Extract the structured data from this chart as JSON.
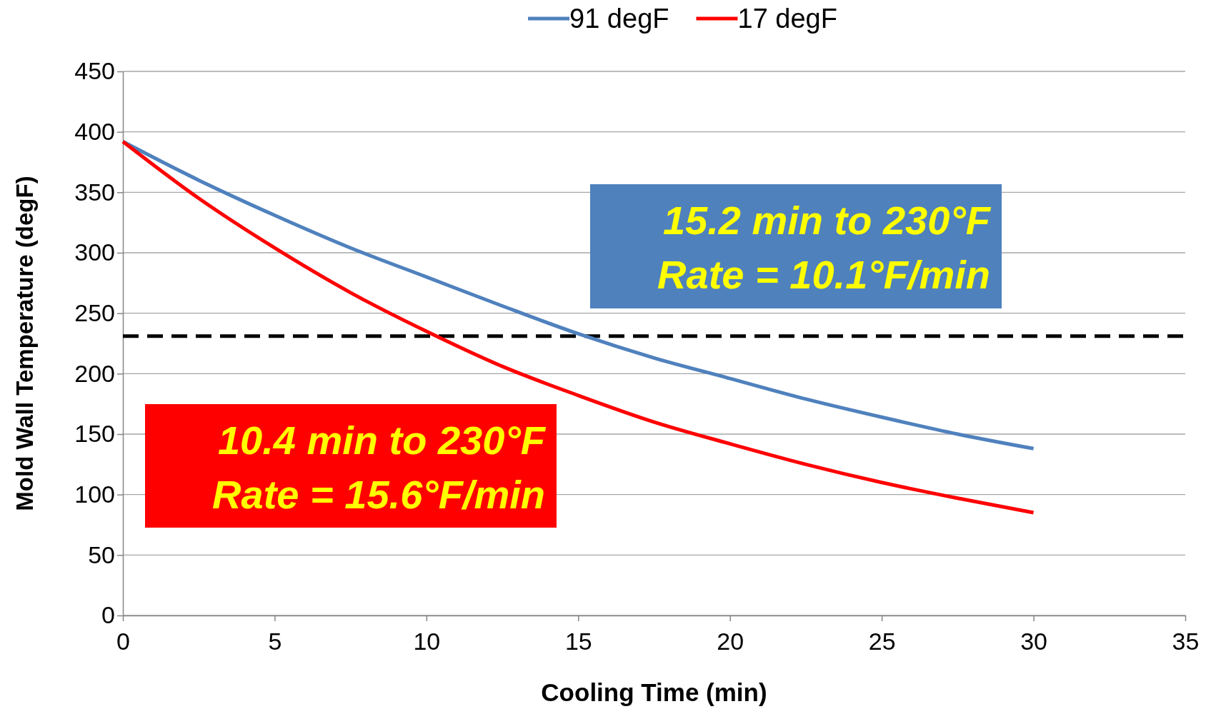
{
  "chart_data": {
    "type": "line",
    "xlabel": "Cooling Time (min)",
    "ylabel": "Mold Wall Temperature (degF)",
    "x": [
      0,
      2.5,
      5,
      7.5,
      10,
      12.5,
      15,
      17.5,
      20,
      22.5,
      25,
      27.5,
      30
    ],
    "series": [
      {
        "name": "91 degF",
        "color": "#4f81bd",
        "values": [
          392,
          360,
          331,
          304,
          280,
          256,
          233,
          213,
          196,
          179,
          164,
          150,
          138
        ]
      },
      {
        "name": "17 degF",
        "color": "#ff0000",
        "values": [
          392,
          345,
          304,
          267,
          235,
          206,
          182,
          160,
          142,
          125,
          110,
          97,
          85
        ]
      }
    ],
    "xlim": [
      0,
      35
    ],
    "xticks": [
      0,
      5,
      10,
      15,
      20,
      25,
      30,
      35
    ],
    "ylim": [
      0,
      450
    ],
    "yticks": [
      0,
      50,
      100,
      150,
      200,
      250,
      300,
      350,
      400,
      450
    ],
    "grid": "y",
    "legend": "top",
    "marker": "none",
    "line_style": "solid",
    "ref_lines": [
      {
        "axis": "y",
        "value": 231,
        "color": "#000000",
        "line_style": "dashed"
      }
    ],
    "annotations": [
      "15.2 min to 230°F\nRate = 10.1°F/min",
      "10.4 min to 230°F\nRate = 15.6°F/min"
    ]
  }
}
